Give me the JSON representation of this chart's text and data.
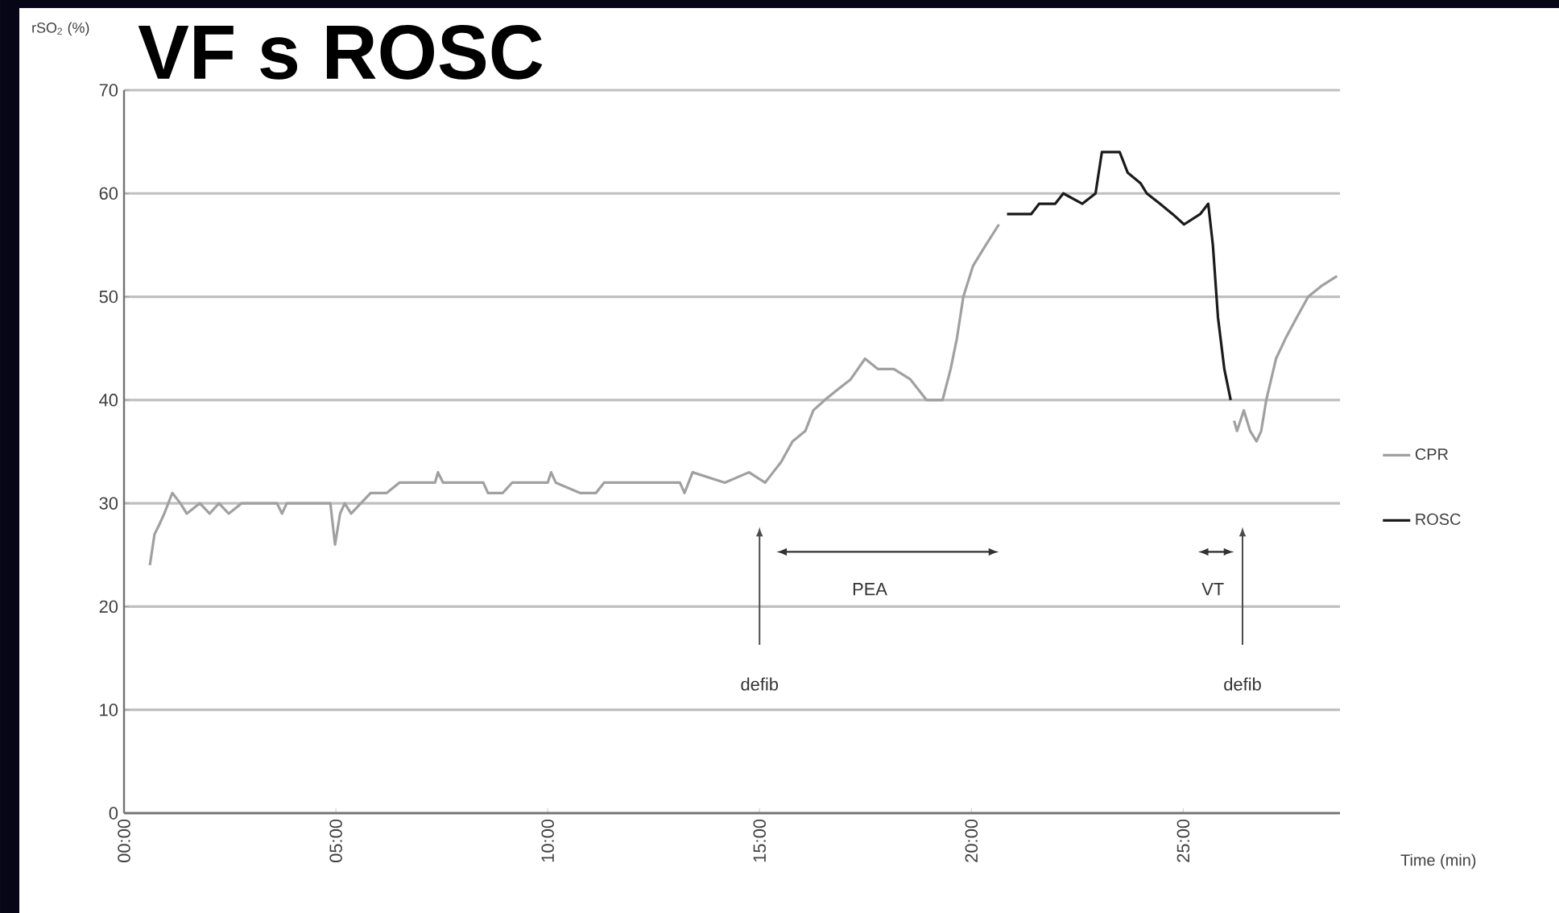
{
  "chart_data": {
    "type": "line",
    "title": "VF s ROSC",
    "ylabel": "rSO$_{2}$ (%)",
    "xlabel": "Time (min)",
    "xlim": [
      0,
      28.7
    ],
    "ylim": [
      0,
      70
    ],
    "xticks": [
      {
        "value": 0,
        "label": "00:00"
      },
      {
        "value": 5,
        "label": "05:00"
      },
      {
        "value": 10,
        "label": "10:00"
      },
      {
        "value": 15,
        "label": "15:00"
      },
      {
        "value": 20,
        "label": "20:00"
      },
      {
        "value": 25,
        "label": "25:00"
      }
    ],
    "yticks": [
      0,
      10,
      20,
      30,
      40,
      50,
      60,
      70
    ],
    "grid": "y",
    "legend": "right",
    "marker": "none",
    "line_style": "solid",
    "series": [
      {
        "name": "CPR",
        "color": "#a0a0a0",
        "x": [
          0.61,
          0.72,
          0.84,
          0.95,
          1.14,
          1.33,
          1.48,
          1.79,
          2.02,
          2.24,
          2.47,
          2.78,
          3.61,
          3.73,
          3.84,
          4.87,
          4.98,
          5.1,
          5.21,
          5.36,
          5.59,
          5.82,
          6.2,
          6.5,
          7.34,
          7.41,
          7.53,
          8.48,
          8.59,
          8.94,
          9.16,
          10.0,
          10.08,
          10.19,
          10.76,
          11.14,
          11.33,
          13.12,
          13.23,
          13.42,
          14.18,
          14.75,
          15.13,
          15.32,
          15.51,
          15.78,
          16.08,
          16.27,
          16.54,
          16.84,
          17.15,
          17.49,
          17.79,
          18.17,
          18.56,
          18.94,
          19.32,
          19.51,
          19.66,
          19.81,
          20.04,
          20.34,
          20.65,
          20.75,
          26.2,
          26.27,
          26.43,
          26.58,
          26.73,
          26.84,
          26.96,
          27.19,
          27.42,
          27.68,
          27.95,
          28.25,
          28.63
        ],
        "values": [
          24,
          27,
          28,
          29,
          31,
          30,
          29,
          30,
          29,
          30,
          29,
          30,
          30,
          29,
          30,
          30,
          26,
          29,
          30,
          29,
          30,
          31,
          31,
          32,
          32,
          33,
          32,
          32,
          31,
          31,
          32,
          32,
          33,
          32,
          31,
          31,
          32,
          32,
          31,
          33,
          32,
          33,
          32,
          33,
          34,
          36,
          37,
          39,
          40,
          41,
          42,
          44,
          43,
          43,
          42,
          40,
          40,
          43,
          46,
          50,
          53,
          55,
          57,
          null,
          38,
          37,
          39,
          37,
          36,
          37,
          40,
          44,
          46,
          48,
          50,
          51,
          52
        ]
      },
      {
        "name": "ROSC",
        "color": "#1a1a1a",
        "x": [
          20.84,
          21.41,
          21.6,
          21.98,
          22.17,
          22.62,
          22.93,
          23.08,
          23.5,
          23.69,
          23.99,
          24.14,
          24.45,
          24.75,
          25.02,
          25.4,
          25.59,
          25.7,
          25.82,
          25.97,
          26.12
        ],
        "values": [
          58,
          58,
          59,
          59,
          60,
          59,
          60,
          64,
          64,
          62,
          61,
          60,
          59,
          58,
          57,
          58,
          59,
          55,
          48,
          43,
          40
        ]
      }
    ],
    "annotations": [
      "defib",
      "PEA",
      "VT",
      "defib"
    ]
  }
}
